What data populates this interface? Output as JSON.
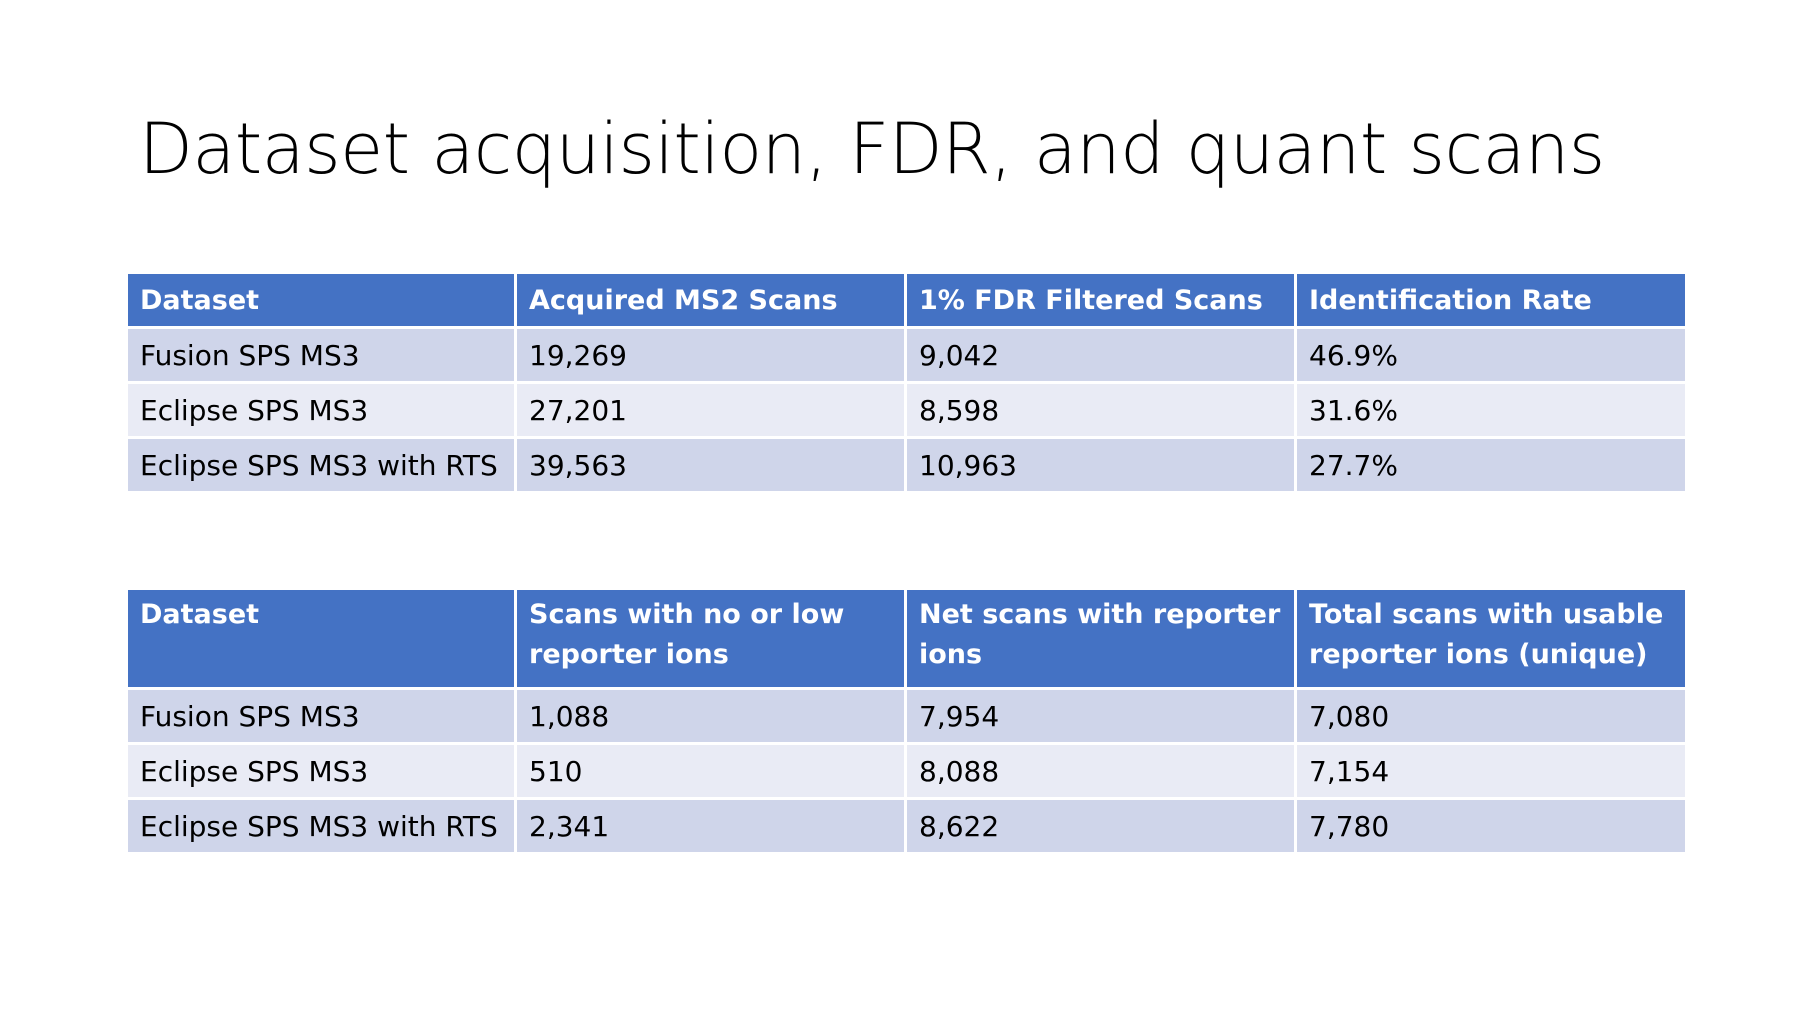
{
  "slide": {
    "title": "Dataset acquisition, FDR, and quant scans"
  },
  "table1": {
    "headers": [
      "Dataset",
      "Acquired MS2 Scans",
      "1% FDR Filtered Scans",
      "Identification Rate"
    ],
    "rows": [
      [
        "Fusion SPS MS3",
        "19,269",
        "9,042",
        "46.9%"
      ],
      [
        "Eclipse SPS MS3",
        "27,201",
        "8,598",
        "31.6%"
      ],
      [
        "Eclipse SPS MS3 with RTS",
        "39,563",
        "10,963",
        "27.7%"
      ]
    ]
  },
  "table2": {
    "headers": [
      "Dataset",
      "Scans with no or low reporter ions",
      "Net scans with reporter ions",
      "Total scans with usable reporter ions (unique)"
    ],
    "rows": [
      [
        "Fusion SPS MS3",
        "1,088",
        "7,954",
        "7,080"
      ],
      [
        "Eclipse SPS MS3",
        "510",
        "8,088",
        "7,154"
      ],
      [
        "Eclipse SPS MS3 with RTS",
        "2,341",
        "8,622",
        "7,780"
      ]
    ]
  },
  "colors": {
    "header_bg": "#4472c4",
    "row_odd_bg": "#cfd5ea",
    "row_even_bg": "#e9ebf5"
  }
}
